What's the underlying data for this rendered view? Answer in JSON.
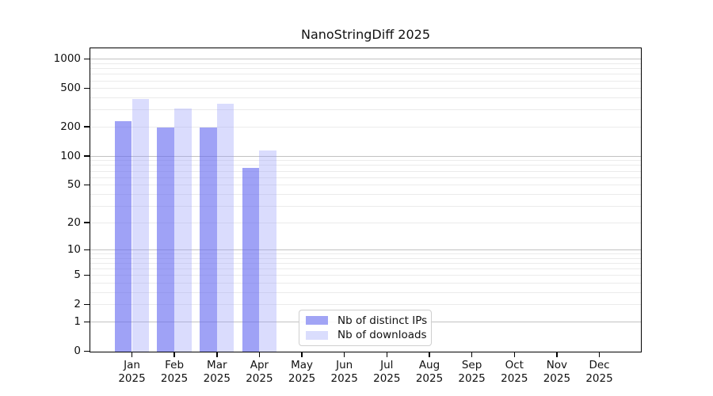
{
  "chart_data": {
    "type": "bar",
    "title": "NanoStringDiff 2025",
    "categories": [
      "Jan 2025",
      "Feb 2025",
      "Mar 2025",
      "Apr 2025",
      "May 2025",
      "Jun 2025",
      "Jul 2025",
      "Aug 2025",
      "Sep 2025",
      "Oct 2025",
      "Nov 2025",
      "Dec 2025"
    ],
    "x_axis": {
      "months": [
        {
          "label": "Jan",
          "year": "2025"
        },
        {
          "label": "Feb",
          "year": "2025"
        },
        {
          "label": "Mar",
          "year": "2025"
        },
        {
          "label": "Apr",
          "year": "2025"
        },
        {
          "label": "May",
          "year": "2025"
        },
        {
          "label": "Jun",
          "year": "2025"
        },
        {
          "label": "Jul",
          "year": "2025"
        },
        {
          "label": "Aug",
          "year": "2025"
        },
        {
          "label": "Sep",
          "year": "2025"
        },
        {
          "label": "Oct",
          "year": "2025"
        },
        {
          "label": "Nov",
          "year": "2025"
        },
        {
          "label": "Dec",
          "year": "2025"
        }
      ]
    },
    "y_axis": {
      "scale": "log10(value+1)",
      "tick_values": [
        1000,
        500,
        200,
        100,
        50,
        20,
        10,
        5,
        2,
        1,
        0
      ],
      "tick_labels": [
        "1000",
        "500",
        "200",
        "100",
        "50",
        "20",
        "10",
        "5",
        "2",
        "1",
        "0"
      ],
      "major_gridlines": [
        1000,
        100,
        10,
        1
      ],
      "minor_gridlines": [
        900,
        800,
        700,
        600,
        500,
        400,
        300,
        200,
        90,
        80,
        70,
        60,
        50,
        40,
        30,
        20,
        9,
        8,
        7,
        6,
        5,
        4,
        3,
        2
      ]
    },
    "series": [
      {
        "name": "Nb of distinct IPs",
        "color": "#a1a4f5",
        "fill": "rgba(100,105,240,0.62)",
        "values": [
          229,
          198,
          196,
          75,
          null,
          null,
          null,
          null,
          null,
          null,
          null,
          null
        ]
      },
      {
        "name": "Nb of downloads",
        "color": "#daddfd",
        "fill": "rgba(150,155,250,0.35)",
        "values": [
          384,
          311,
          346,
          113,
          null,
          null,
          null,
          null,
          null,
          null,
          null,
          null
        ]
      }
    ],
    "legend": {
      "position": "lower-center-inside"
    },
    "colors": {
      "grid_major": "#c2c2c2",
      "grid_minor": "#ebebeb",
      "axis": "#000000"
    }
  }
}
